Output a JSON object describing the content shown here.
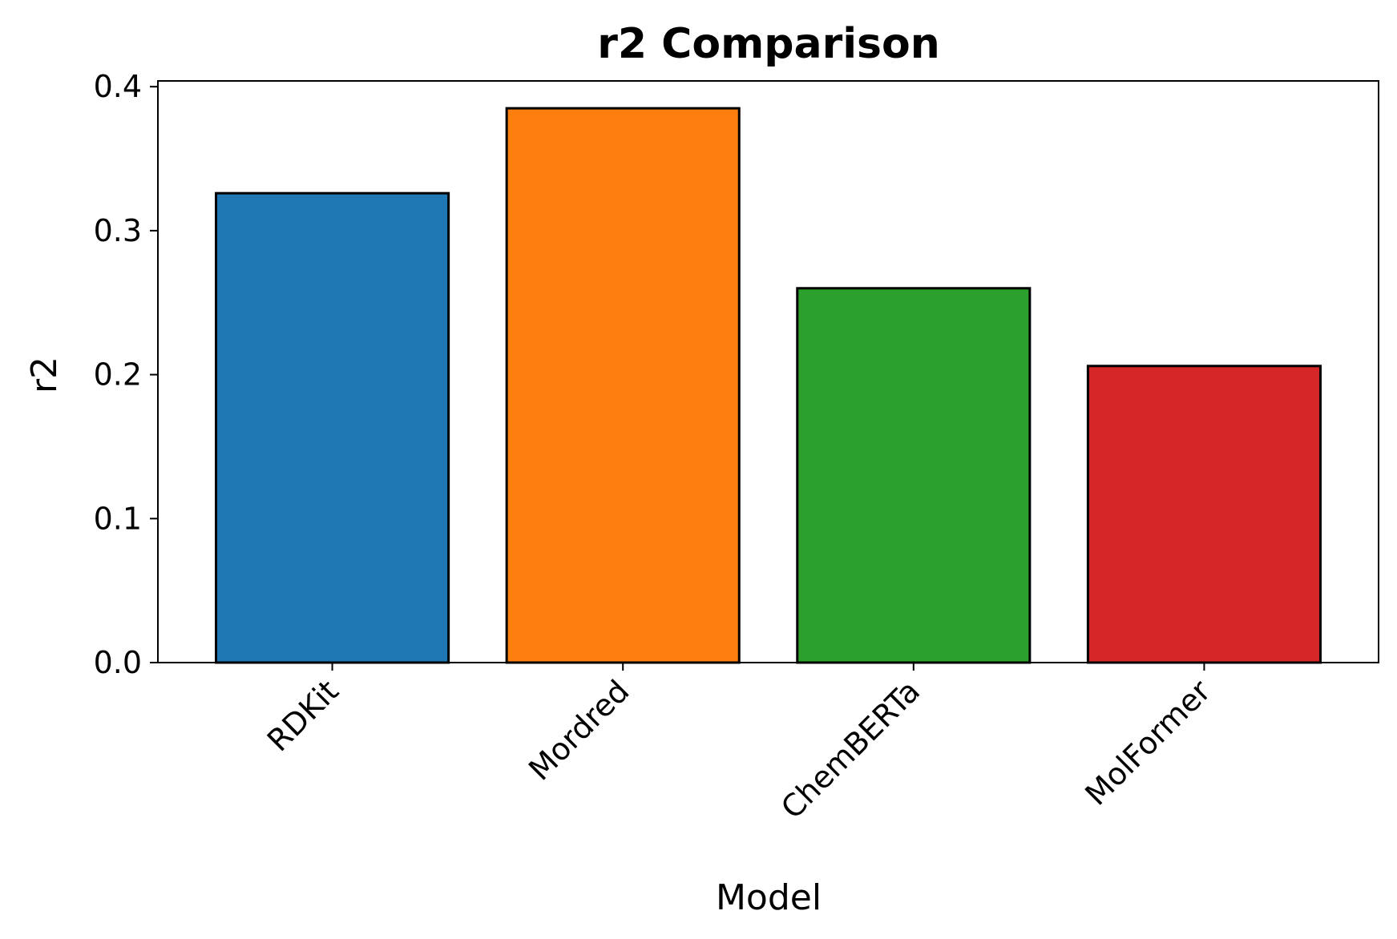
{
  "chart_data": {
    "type": "bar",
    "title": "r2 Comparison",
    "xlabel": "Model",
    "ylabel": "r2",
    "categories": [
      "RDKit",
      "Mordred",
      "ChemBERTa",
      "MolFormer"
    ],
    "values": [
      0.326,
      0.385,
      0.26,
      0.206
    ],
    "ylim": [
      0,
      0.404
    ],
    "yticks": [
      0.0,
      0.1,
      0.2,
      0.3,
      0.4
    ],
    "ytick_labels": [
      "0.0",
      "0.1",
      "0.2",
      "0.3",
      "0.4"
    ],
    "colors": [
      "#1f77b4",
      "#ff7f0e",
      "#2ca02c",
      "#d62728"
    ],
    "edge_color": "#000000",
    "grid": false,
    "legend": "none",
    "xtick_rotation": "45"
  }
}
